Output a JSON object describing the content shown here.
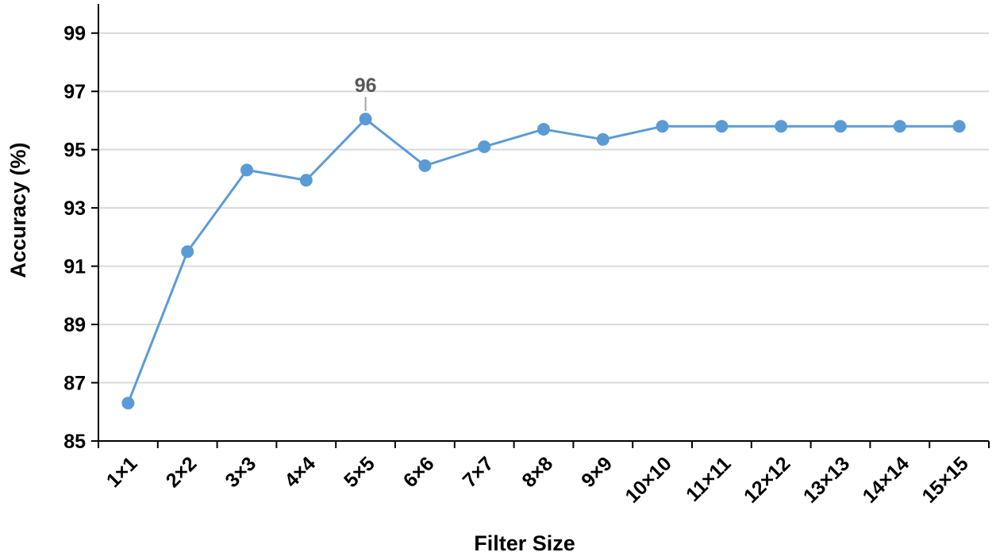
{
  "chart_data": {
    "type": "line",
    "title": "",
    "xlabel": "Filter Size",
    "ylabel": "Accuracy (%)",
    "categories": [
      "1×1",
      "2×2",
      "3×3",
      "4×4",
      "5×5",
      "6×6",
      "7×7",
      "8×8",
      "9×9",
      "10×10",
      "11×11",
      "12×12",
      "13×13",
      "14×14",
      "15×15"
    ],
    "series": [
      {
        "values": [
          86.3,
          91.5,
          94.3,
          93.95,
          96.05,
          94.45,
          95.1,
          95.7,
          95.35,
          95.8,
          95.8,
          95.8,
          95.8,
          95.8,
          95.8
        ]
      }
    ],
    "ylim": [
      85,
      100
    ],
    "yticks": [
      85,
      87,
      89,
      91,
      93,
      95,
      97,
      99
    ],
    "grid": true,
    "legend": "none",
    "annotations": [
      {
        "category": "5×5",
        "text": "96"
      }
    ],
    "colors": {
      "series": "#5b9bd5",
      "grid": "#d9d9d9",
      "axis": "#000000",
      "annotation": "#595959"
    }
  }
}
